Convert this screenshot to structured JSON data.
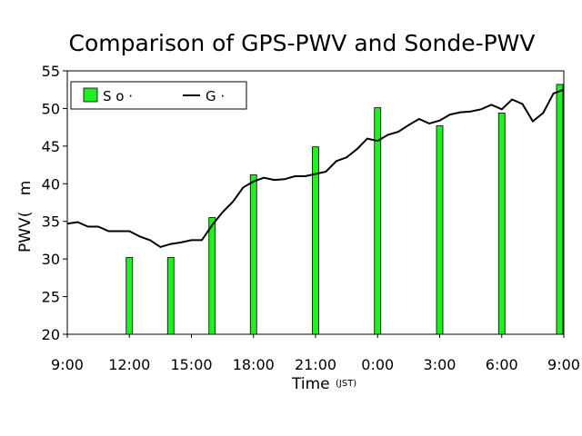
{
  "chart_data": {
    "type": "bar",
    "title": "Comparison of GPS-PWV and Sonde-PWV",
    "xlabel": "Time",
    "xlabel_unit": "(JST)",
    "ylabel": "PWV(",
    "ylabel_tail": "m",
    "ylim": [
      20,
      55
    ],
    "yticks": [
      "20",
      "25",
      "30",
      "35",
      "40",
      "45",
      "50",
      "55"
    ],
    "xlim": [
      0,
      24
    ],
    "xticks": [
      "9:00",
      "12:00",
      "15:00",
      "18:00",
      "21:00",
      "0:00",
      "3:00",
      "6:00",
      "9:00"
    ],
    "legend": {
      "position": "top-left",
      "sonde_label": "S o ·",
      "gps_label": "G ·"
    },
    "bar_color": "#22ee22",
    "line_color": "#000000",
    "series": [
      {
        "name": "S o ·",
        "kind": "bar",
        "x": [
          3,
          5,
          7,
          9,
          12,
          15,
          18,
          21,
          24
        ],
        "values": [
          30.2,
          30.2,
          35.5,
          41.2,
          44.9,
          50.1,
          47.7,
          49.4,
          53.2
        ]
      },
      {
        "name": "G ·",
        "kind": "line",
        "x": [
          0,
          0.5,
          1,
          1.5,
          2,
          2.5,
          3,
          3.5,
          4,
          4.5,
          5,
          5.5,
          6,
          6.5,
          7,
          7.5,
          8,
          8.5,
          9,
          9.5,
          10,
          10.5,
          11,
          11.5,
          12,
          12.5,
          13,
          13.5,
          14,
          14.5,
          15,
          15.5,
          16,
          16.5,
          17,
          17.5,
          18,
          18.5,
          19,
          19.5,
          20,
          20.5,
          21,
          21.5,
          22,
          22.5,
          23,
          23.5,
          24
        ],
        "values": [
          34.7,
          34.9,
          34.3,
          34.3,
          33.7,
          33.7,
          33.7,
          33.0,
          32.5,
          31.6,
          32.0,
          32.2,
          32.5,
          32.5,
          34.5,
          36.2,
          37.6,
          39.5,
          40.3,
          40.8,
          40.5,
          40.6,
          41.0,
          41.0,
          41.3,
          41.6,
          43.0,
          43.5,
          44.6,
          46.0,
          45.7,
          46.5,
          46.9,
          47.8,
          48.6,
          48.0,
          48.4,
          49.2,
          49.5,
          49.6,
          49.9,
          50.5,
          49.9,
          51.2,
          50.6,
          48.3,
          49.4,
          52.0,
          52.5
        ]
      }
    ]
  }
}
